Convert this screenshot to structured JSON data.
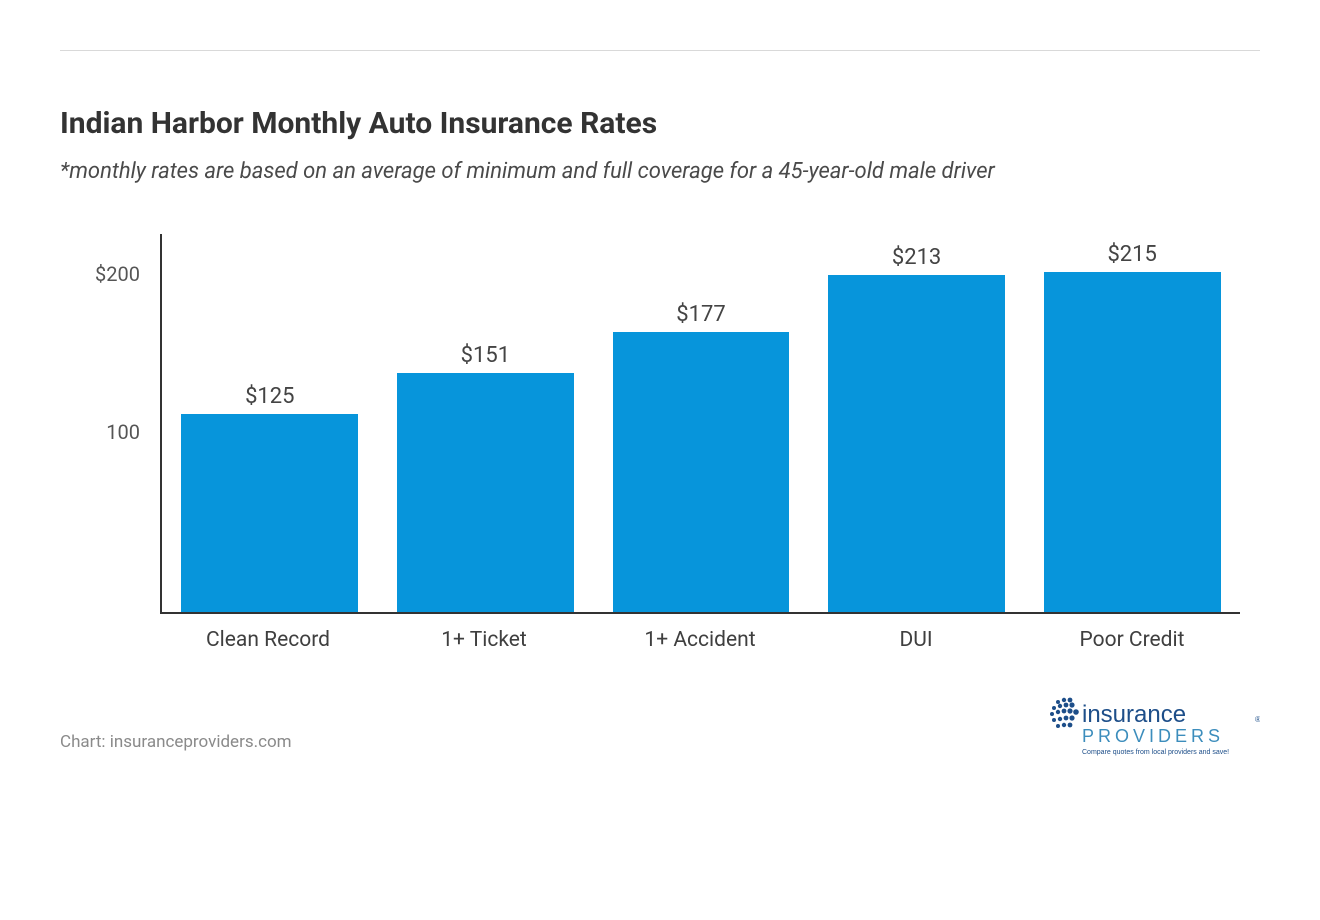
{
  "chart": {
    "type": "bar",
    "title": "Indian Harbor Monthly Auto Insurance Rates",
    "subtitle": "*monthly rates are based on an average of minimum and full coverage for a 45-year-old male driver",
    "source": "Chart: insuranceproviders.com",
    "categories": [
      "Clean Record",
      "1+ Ticket",
      "1+ Accident",
      "DUI",
      "Poor Credit"
    ],
    "values": [
      125,
      151,
      177,
      213,
      215
    ],
    "value_labels": [
      "$125",
      "$151",
      "$177",
      "$213",
      "$215"
    ],
    "bar_color": "#0795db",
    "background_color": "#ffffff",
    "axis_color": "#333333",
    "text_color": "#3f3f3f",
    "ymax": 215,
    "yticks": [
      {
        "value": 100,
        "label": "100"
      },
      {
        "value": 200,
        "label": "$200"
      }
    ],
    "title_fontsize": 30,
    "subtitle_fontsize": 22,
    "axis_fontsize": 21,
    "value_label_fontsize": 22,
    "bar_width_ratio": 0.82
  },
  "logo": {
    "name": "insurance providers",
    "top_text": "insurance",
    "bottom_text": "PROVIDERS",
    "tagline": "Compare quotes from local providers and save!",
    "top_color": "#1d4e89",
    "bottom_color": "#3c8dbc",
    "dot_color": "#1d4e89"
  }
}
